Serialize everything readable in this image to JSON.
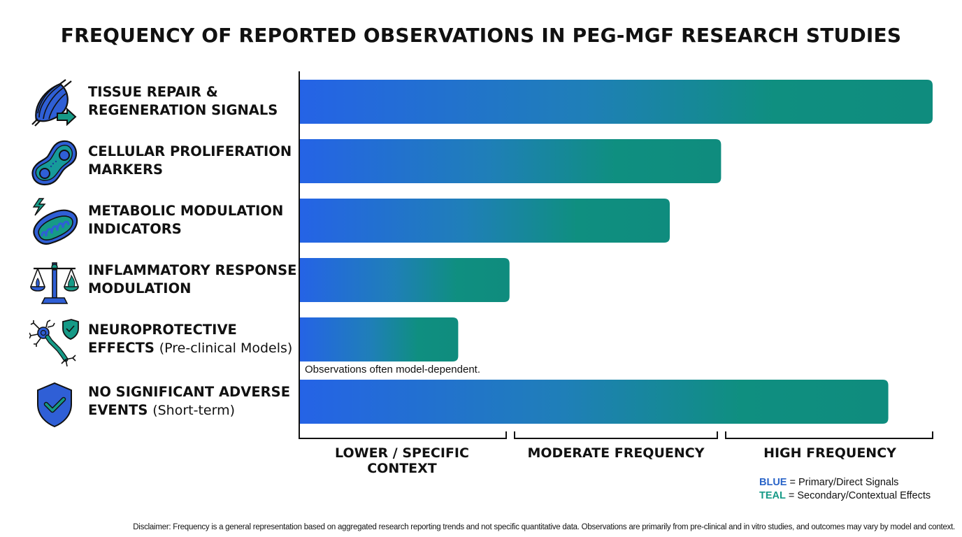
{
  "chart_data": {
    "type": "bar",
    "orientation": "horizontal",
    "title": "FREQUENCY OF REPORTED OBSERVATIONS IN PEG-MGF RESEARCH STUDIES",
    "categories": [
      {
        "label": "TISSUE REPAIR & REGENERATION SIGNALS",
        "lines": [
          "TISSUE REPAIR &",
          "REGENERATION SIGNALS"
        ],
        "sub": "",
        "icon": "muscle-arrow-icon"
      },
      {
        "label": "CELLULAR PROLIFERATION MARKERS",
        "lines": [
          "CELLULAR PROLIFERATION",
          "MARKERS"
        ],
        "sub": "",
        "icon": "cell-division-icon"
      },
      {
        "label": "METABOLIC MODULATION INDICATORS",
        "lines": [
          "METABOLIC MODULATION",
          "INDICATORS"
        ],
        "sub": "",
        "icon": "mitochondria-bolt-icon"
      },
      {
        "label": "INFLAMMATORY RESPONSE MODULATION",
        "lines": [
          "INFLAMMATORY RESPONSE",
          "MODULATION"
        ],
        "sub": "",
        "icon": "balance-scale-icon"
      },
      {
        "label": "NEUROPROTECTIVE EFFECTS (Pre-clinical Models)",
        "lines": [
          "NEUROPROTECTIVE",
          "EFFECTS"
        ],
        "sub": "(Pre-clinical Models)",
        "icon": "neuron-shield-icon"
      },
      {
        "label": "NO SIGNIFICANT ADVERSE EVENTS (Short-term)",
        "lines": [
          "NO SIGNIFICANT ADVERSE",
          "EVENTS"
        ],
        "sub": "(Short-term)",
        "icon": "shield-check-icon"
      }
    ],
    "values": [
      100,
      66.6,
      58.5,
      33.2,
      25.1,
      93.0
    ],
    "xlim": [
      0,
      100
    ],
    "value_scale": "relative frequency (qualitative)",
    "x_tiers": [
      "LOWER / SPECIFIC CONTEXT",
      "MODERATE FREQUENCY",
      "HIGH FREQUENCY"
    ],
    "annotations": [
      {
        "category_index": 4,
        "text": "Observations often model-dependent."
      }
    ],
    "legend": [
      {
        "key": "BLUE",
        "text": "= Primary/Direct Signals",
        "color": "#2a64c8"
      },
      {
        "key": "TEAL",
        "text": "= Secondary/Contextual Effects",
        "color": "#169a87"
      }
    ],
    "legend_position": "bottom-right",
    "grid": false,
    "gradient_colors": {
      "start": "#2563e6",
      "end": "#0f8f80"
    }
  },
  "disclaimer": "Disclaimer: Frequency is a general representation based on aggregated research reporting trends and not specific quantitative data. Observations are primarily from pre-clinical and in vitro studies, and outcomes may vary by model and context."
}
